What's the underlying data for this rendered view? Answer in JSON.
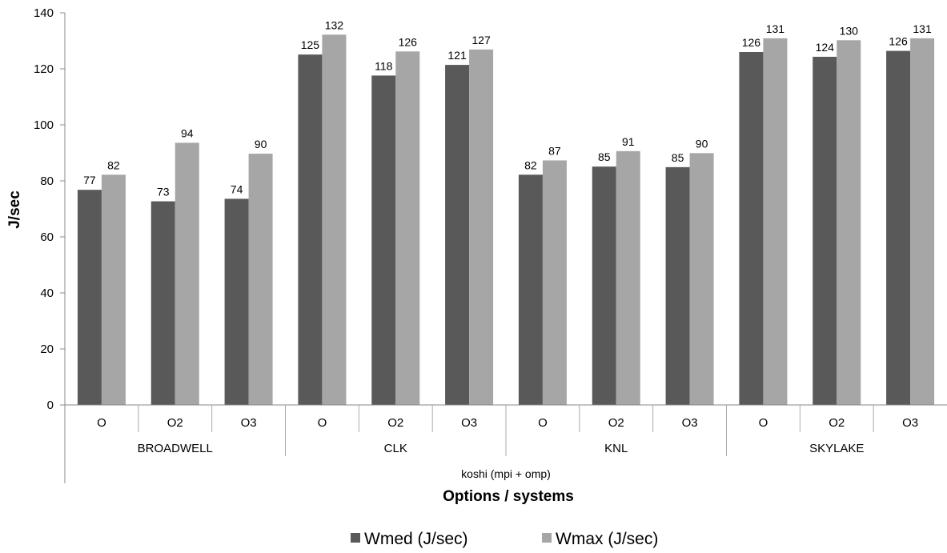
{
  "chart_data": {
    "type": "bar",
    "ylabel": "J/sec",
    "xlabel": "Options / systems",
    "super_group": "koshi (mpi + omp)",
    "ylim": [
      0,
      140
    ],
    "yticks": [
      0,
      20,
      40,
      60,
      80,
      100,
      120,
      140
    ],
    "groups": [
      {
        "name": "BROADWELL",
        "categories": [
          "O",
          "O2",
          "O3"
        ]
      },
      {
        "name": "CLK",
        "categories": [
          "O",
          "O2",
          "O3"
        ]
      },
      {
        "name": "KNL",
        "categories": [
          "O",
          "O2",
          "O3"
        ]
      },
      {
        "name": "SKYLAKE",
        "categories": [
          "O",
          "O2",
          "O3"
        ]
      }
    ],
    "series": [
      {
        "name": "Wmed (J/sec)",
        "color": "#595959",
        "values": [
          76.8,
          72.7,
          73.6,
          125.1,
          117.6,
          121.4,
          82.2,
          85.1,
          84.9,
          126.0,
          124.3,
          126.4
        ],
        "labels": [
          "77",
          "73",
          "74",
          "125",
          "118",
          "121",
          "82",
          "85",
          "85",
          "126",
          "124",
          "126"
        ]
      },
      {
        "name": "Wmax (J/sec)",
        "color": "#a6a6a6",
        "values": [
          82.2,
          93.6,
          89.7,
          132.2,
          126.2,
          126.9,
          87.3,
          90.6,
          89.9,
          130.9,
          130.2,
          130.9
        ],
        "labels": [
          "82",
          "94",
          "90",
          "132",
          "126",
          "127",
          "87",
          "91",
          "90",
          "131",
          "130",
          "131"
        ]
      }
    ],
    "grid": false,
    "legend_position": "bottom"
  }
}
